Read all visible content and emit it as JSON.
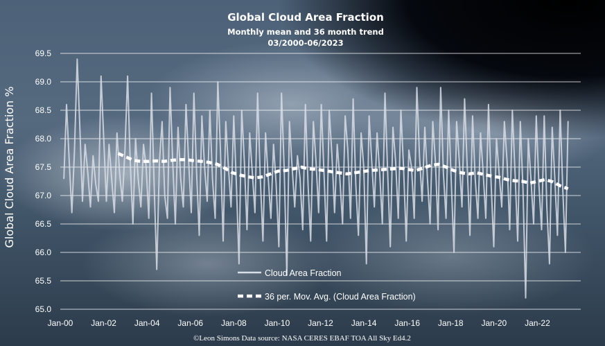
{
  "chart_data": {
    "type": "line",
    "title": "Global Cloud Area Fraction",
    "subtitle_line1": "Monthly mean and 36 month trend",
    "subtitle_line2": "03/2000-06/2023",
    "ylabel": "Global Cloud Area Fraction %",
    "xlabel": "",
    "ylim": [
      65.0,
      69.5
    ],
    "y_ticks": [
      "65.0",
      "65.5",
      "66.0",
      "66.5",
      "67.0",
      "67.5",
      "68.0",
      "68.5",
      "69.0",
      "69.5"
    ],
    "x_ticks": [
      "Jan-00",
      "Jan-02",
      "Jan-04",
      "Jan-06",
      "Jan-08",
      "Jan-10",
      "Jan-12",
      "Jan-14",
      "Jan-16",
      "Jan-18",
      "Jan-20",
      "Jan-22"
    ],
    "grid": true,
    "legend_placement": "inside-lower-center",
    "series": [
      {
        "name": "Cloud Area Fraction",
        "style": "solid",
        "color": "#d8dde6",
        "start_month": "2000-03",
        "values": [
          67.3,
          68.6,
          67.6,
          66.7,
          67.8,
          69.4,
          68.2,
          66.9,
          67.9,
          67.4,
          66.8,
          67.7,
          67.2,
          66.9,
          69.1,
          68.0,
          66.9,
          67.9,
          67.3,
          66.7,
          68.1,
          67.4,
          66.9,
          67.8,
          69.1,
          67.6,
          66.5,
          68.0,
          67.3,
          66.8,
          67.9,
          67.5,
          66.6,
          68.8,
          67.2,
          65.7,
          67.6,
          68.3,
          67.0,
          66.6,
          68.9,
          67.6,
          66.5,
          68.2,
          67.3,
          66.8,
          68.6,
          67.6,
          66.7,
          68.8,
          67.4,
          66.3,
          68.4,
          67.5,
          66.9,
          68.5,
          67.3,
          66.6,
          69.0,
          67.8,
          66.2,
          68.3,
          67.5,
          66.8,
          68.4,
          67.2,
          65.8,
          68.5,
          67.6,
          66.4,
          68.1,
          67.4,
          66.7,
          68.8,
          67.3,
          66.2,
          68.1,
          67.3,
          66.6,
          67.9,
          67.2,
          66.1,
          68.8,
          67.5,
          65.6,
          68.3,
          67.5,
          66.8,
          67.7,
          67.3,
          66.4,
          68.6,
          67.2,
          66.2,
          68.3,
          67.6,
          66.7,
          68.6,
          67.4,
          66.2,
          68.5,
          67.7,
          66.7,
          67.9,
          67.3,
          66.5,
          68.4,
          67.8,
          66.6,
          68.7,
          67.2,
          66.3,
          68.1,
          67.5,
          65.8,
          68.4,
          67.6,
          66.8,
          68.1,
          67.4,
          66.5,
          68.8,
          67.4,
          66.1,
          68.2,
          67.6,
          66.6,
          68.5,
          67.5,
          66.2,
          67.8,
          67.5,
          66.6,
          68.9,
          67.7,
          66.9,
          68.2,
          67.3,
          66.5,
          68.3,
          67.6,
          66.4,
          68.9,
          67.4,
          66.6,
          68.5,
          67.2,
          66.0,
          68.3,
          67.6,
          66.8,
          68.7,
          67.5,
          66.3,
          68.4,
          67.3,
          66.6,
          68.1,
          67.4,
          66.6,
          68.6,
          67.2,
          66.1,
          68.0,
          67.4,
          66.8,
          68.3,
          67.6,
          66.4,
          68.5,
          67.4,
          66.2,
          68.3,
          67.1,
          65.2,
          68.0,
          67.3,
          66.5,
          68.4,
          67.2,
          66.4,
          68.4,
          66.8,
          65.8,
          68.2,
          67.3,
          66.3,
          68.5,
          67.1,
          66.0,
          68.3
        ]
      },
      {
        "name": "36 per. Mov. Avg. (Cloud Area Fraction)",
        "style": "dashed",
        "color": "#ffffff",
        "start_month": "2002-09",
        "values": [
          67.74,
          67.68,
          67.62,
          67.6,
          67.6,
          67.61,
          67.6,
          67.62,
          67.63,
          67.63,
          67.61,
          67.6,
          67.58,
          67.55,
          67.48,
          67.4,
          67.36,
          67.33,
          67.31,
          67.33,
          67.38,
          67.43,
          67.44,
          67.47,
          67.5,
          67.47,
          67.46,
          67.44,
          67.42,
          67.4,
          67.38,
          67.4,
          67.42,
          67.44,
          67.45,
          67.46,
          67.47,
          67.48,
          67.46,
          67.44,
          67.48,
          67.53,
          67.55,
          67.5,
          67.44,
          67.4,
          67.38,
          67.4,
          67.37,
          67.34,
          67.32,
          67.28,
          67.26,
          67.25,
          67.22,
          67.25,
          67.28,
          67.24,
          67.17,
          67.12
        ]
      }
    ]
  },
  "credit": "©Leon Simons  Data source: NASA CERES EBAF TOA All Sky Ed4.2",
  "colors": {
    "background_top": "#000000",
    "text": "#ffffff"
  }
}
